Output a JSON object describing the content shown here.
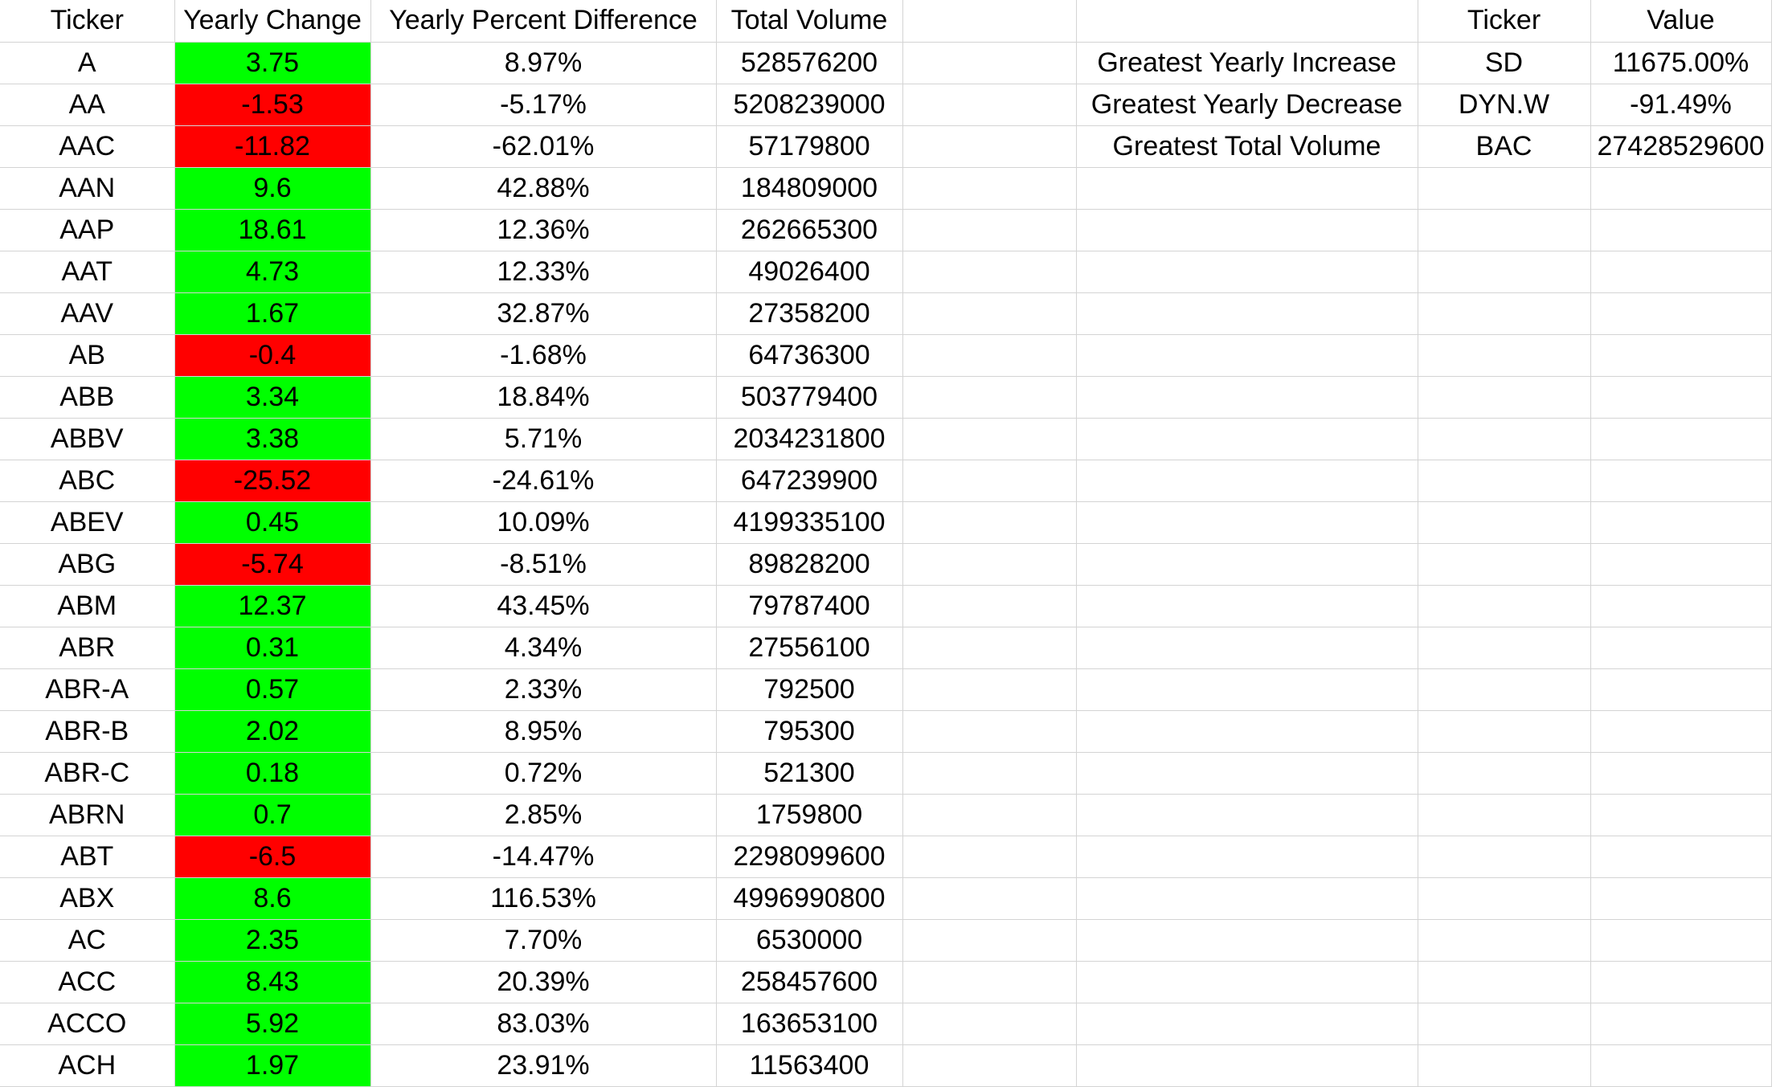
{
  "main_table": {
    "headers": {
      "ticker": "Ticker",
      "yearly_change": "Yearly Change",
      "yearly_percent": "Yearly Percent Difference",
      "total_volume": "Total Volume"
    },
    "rows": [
      {
        "ticker": "A",
        "yearly_change": "3.75",
        "yearly_percent": "8.97%",
        "total_volume": "528576200",
        "change_status": "positive"
      },
      {
        "ticker": "AA",
        "yearly_change": "-1.53",
        "yearly_percent": "-5.17%",
        "total_volume": "5208239000",
        "change_status": "negative"
      },
      {
        "ticker": "AAC",
        "yearly_change": "-11.82",
        "yearly_percent": "-62.01%",
        "total_volume": "57179800",
        "change_status": "negative"
      },
      {
        "ticker": "AAN",
        "yearly_change": "9.6",
        "yearly_percent": "42.88%",
        "total_volume": "184809000",
        "change_status": "positive"
      },
      {
        "ticker": "AAP",
        "yearly_change": "18.61",
        "yearly_percent": "12.36%",
        "total_volume": "262665300",
        "change_status": "positive"
      },
      {
        "ticker": "AAT",
        "yearly_change": "4.73",
        "yearly_percent": "12.33%",
        "total_volume": "49026400",
        "change_status": "positive"
      },
      {
        "ticker": "AAV",
        "yearly_change": "1.67",
        "yearly_percent": "32.87%",
        "total_volume": "27358200",
        "change_status": "positive"
      },
      {
        "ticker": "AB",
        "yearly_change": "-0.4",
        "yearly_percent": "-1.68%",
        "total_volume": "64736300",
        "change_status": "negative"
      },
      {
        "ticker": "ABB",
        "yearly_change": "3.34",
        "yearly_percent": "18.84%",
        "total_volume": "503779400",
        "change_status": "positive"
      },
      {
        "ticker": "ABBV",
        "yearly_change": "3.38",
        "yearly_percent": "5.71%",
        "total_volume": "2034231800",
        "change_status": "positive"
      },
      {
        "ticker": "ABC",
        "yearly_change": "-25.52",
        "yearly_percent": "-24.61%",
        "total_volume": "647239900",
        "change_status": "negative"
      },
      {
        "ticker": "ABEV",
        "yearly_change": "0.45",
        "yearly_percent": "10.09%",
        "total_volume": "4199335100",
        "change_status": "positive"
      },
      {
        "ticker": "ABG",
        "yearly_change": "-5.74",
        "yearly_percent": "-8.51%",
        "total_volume": "89828200",
        "change_status": "negative"
      },
      {
        "ticker": "ABM",
        "yearly_change": "12.37",
        "yearly_percent": "43.45%",
        "total_volume": "79787400",
        "change_status": "positive"
      },
      {
        "ticker": "ABR",
        "yearly_change": "0.31",
        "yearly_percent": "4.34%",
        "total_volume": "27556100",
        "change_status": "positive"
      },
      {
        "ticker": "ABR-A",
        "yearly_change": "0.57",
        "yearly_percent": "2.33%",
        "total_volume": "792500",
        "change_status": "positive"
      },
      {
        "ticker": "ABR-B",
        "yearly_change": "2.02",
        "yearly_percent": "8.95%",
        "total_volume": "795300",
        "change_status": "positive"
      },
      {
        "ticker": "ABR-C",
        "yearly_change": "0.18",
        "yearly_percent": "0.72%",
        "total_volume": "521300",
        "change_status": "positive"
      },
      {
        "ticker": "ABRN",
        "yearly_change": "0.7",
        "yearly_percent": "2.85%",
        "total_volume": "1759800",
        "change_status": "positive"
      },
      {
        "ticker": "ABT",
        "yearly_change": "-6.5",
        "yearly_percent": "-14.47%",
        "total_volume": "2298099600",
        "change_status": "negative"
      },
      {
        "ticker": "ABX",
        "yearly_change": "8.6",
        "yearly_percent": "116.53%",
        "total_volume": "4996990800",
        "change_status": "positive"
      },
      {
        "ticker": "AC",
        "yearly_change": "2.35",
        "yearly_percent": "7.70%",
        "total_volume": "6530000",
        "change_status": "positive"
      },
      {
        "ticker": "ACC",
        "yearly_change": "8.43",
        "yearly_percent": "20.39%",
        "total_volume": "258457600",
        "change_status": "positive"
      },
      {
        "ticker": "ACCO",
        "yearly_change": "5.92",
        "yearly_percent": "83.03%",
        "total_volume": "163653100",
        "change_status": "positive"
      },
      {
        "ticker": "ACH",
        "yearly_change": "1.97",
        "yearly_percent": "23.91%",
        "total_volume": "11563400",
        "change_status": "positive"
      }
    ]
  },
  "summary_table": {
    "headers": {
      "label": "",
      "ticker": "Ticker",
      "value": "Value"
    },
    "rows": [
      {
        "label": "Greatest Yearly Increase",
        "ticker": "SD",
        "value": "11675.00%"
      },
      {
        "label": "Greatest Yearly Decrease",
        "ticker": "DYN.W",
        "value": "-91.49%"
      },
      {
        "label": "Greatest Total Volume",
        "ticker": "BAC",
        "value": "27428529600"
      }
    ]
  },
  "colors": {
    "positive_fill": "#00ff00",
    "negative_fill": "#ff0000",
    "gridline": "#d4d4d4"
  }
}
